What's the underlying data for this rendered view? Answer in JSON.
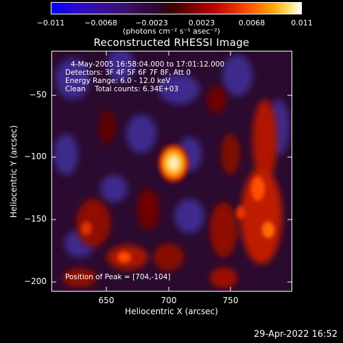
{
  "colorbar": {
    "ticks": [
      "−0.011",
      "−0.0068",
      "−0.0023",
      "0.0023",
      "0.0068",
      "0.011"
    ],
    "units": "(photons cm⁻² s⁻¹ asec⁻²)"
  },
  "title": "Reconstructed RHESSI Image",
  "info": {
    "time": "4-May-2005 16:58:04.000 to 17:01:12.000",
    "detectors": "Detectors: 3F 4F 5F 6F 7F 8F, Att 0",
    "energy": "Energy Range: 6.0 - 12.0 keV",
    "method": "Clean    Total counts: 6.34E+03",
    "peak": "Position of Peak = [704,-104]"
  },
  "axes": {
    "xlabel": "Heliocentric X (arcsec)",
    "ylabel": "Heliocentric Y (arcsec)",
    "xticks": [
      "650",
      "700",
      "750"
    ],
    "yticks": [
      "−50",
      "−100",
      "−150",
      "−200"
    ]
  },
  "datestamp": "29-Apr-2022 16:52",
  "colors": {
    "peak": "#ffffff",
    "bright": "#ffb000",
    "emission": "#d01800",
    "background": "#2a0a2e",
    "negative": "#3c2c8c"
  }
}
